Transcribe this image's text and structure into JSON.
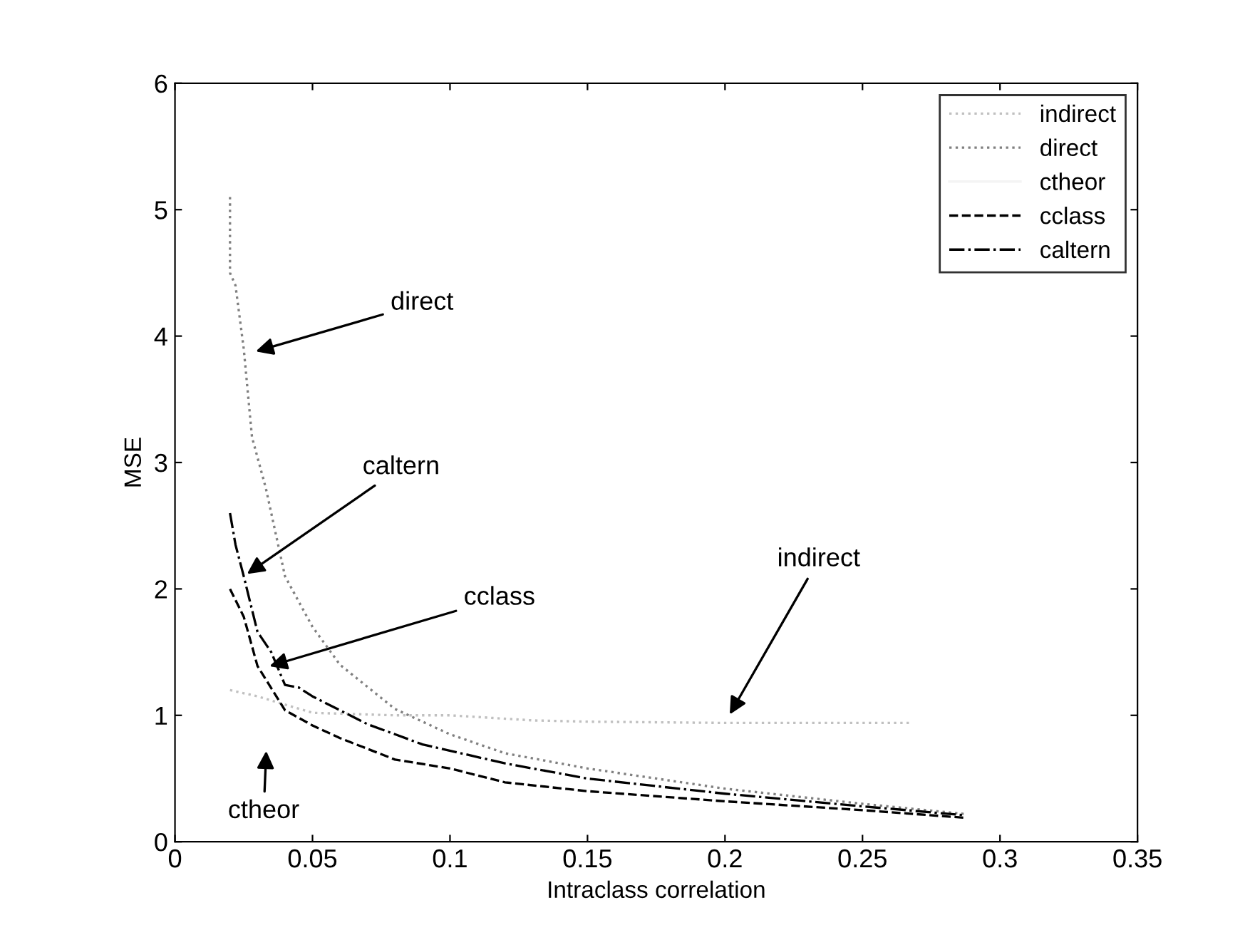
{
  "chart_data": {
    "type": "line",
    "xlabel": "Intraclass correlation",
    "ylabel": "MSE",
    "xlim": [
      0,
      0.35
    ],
    "ylim": [
      0,
      6
    ],
    "xticks": [
      0,
      0.05,
      0.1,
      0.15,
      0.2,
      0.25,
      0.3,
      0.35
    ],
    "yticks": [
      0,
      1,
      2,
      3,
      4,
      5,
      6
    ],
    "grid": false,
    "legend": "top right",
    "series": [
      {
        "name": "indirect",
        "color": "#c0c0c0",
        "line_style": "dotted",
        "x": [
          0.02,
          0.03,
          0.05,
          0.08,
          0.1,
          0.13,
          0.15,
          0.2,
          0.25,
          0.267
        ],
        "values": [
          1.2,
          1.15,
          1.02,
          1.0,
          1.0,
          0.96,
          0.95,
          0.94,
          0.94,
          0.94
        ]
      },
      {
        "name": "direct",
        "color": "#808080",
        "line_style": "dotted",
        "x": [
          0.02,
          0.02,
          0.022,
          0.025,
          0.028,
          0.033,
          0.04,
          0.05,
          0.06,
          0.08,
          0.1,
          0.12,
          0.15,
          0.2,
          0.25,
          0.287
        ],
        "values": [
          5.1,
          4.5,
          4.4,
          3.9,
          3.2,
          2.8,
          2.1,
          1.7,
          1.4,
          1.05,
          0.85,
          0.7,
          0.58,
          0.42,
          0.3,
          0.22
        ]
      },
      {
        "name": "ctheor",
        "color": "#f4f4f4",
        "line_style": "solid"
      },
      {
        "name": "cclass",
        "color": "#000000",
        "line_style": "dashed",
        "x": [
          0.02,
          0.025,
          0.03,
          0.04,
          0.05,
          0.06,
          0.08,
          0.1,
          0.12,
          0.15,
          0.2,
          0.25,
          0.287
        ],
        "values": [
          2.0,
          1.78,
          1.39,
          1.04,
          0.92,
          0.82,
          0.65,
          0.58,
          0.47,
          0.4,
          0.32,
          0.25,
          0.19
        ]
      },
      {
        "name": "caltern",
        "color": "#000000",
        "line_style": "dashdot",
        "x": [
          0.02,
          0.022,
          0.025,
          0.03,
          0.035,
          0.04,
          0.045,
          0.05,
          0.07,
          0.09,
          0.12,
          0.15,
          0.2,
          0.25,
          0.287
        ],
        "values": [
          2.6,
          2.35,
          2.1,
          1.66,
          1.5,
          1.24,
          1.22,
          1.15,
          0.93,
          0.77,
          0.62,
          0.5,
          0.38,
          0.28,
          0.21
        ]
      }
    ],
    "annotations": [
      {
        "text": "direct",
        "x": 0.028,
        "y": 3.87
      },
      {
        "text": "caltern",
        "x": 0.025,
        "y": 2.1
      },
      {
        "text": "cclass",
        "x": 0.033,
        "y": 1.38
      },
      {
        "text": "indirect",
        "x": 0.201,
        "y": 0.98
      },
      "ctheor"
    ]
  }
}
